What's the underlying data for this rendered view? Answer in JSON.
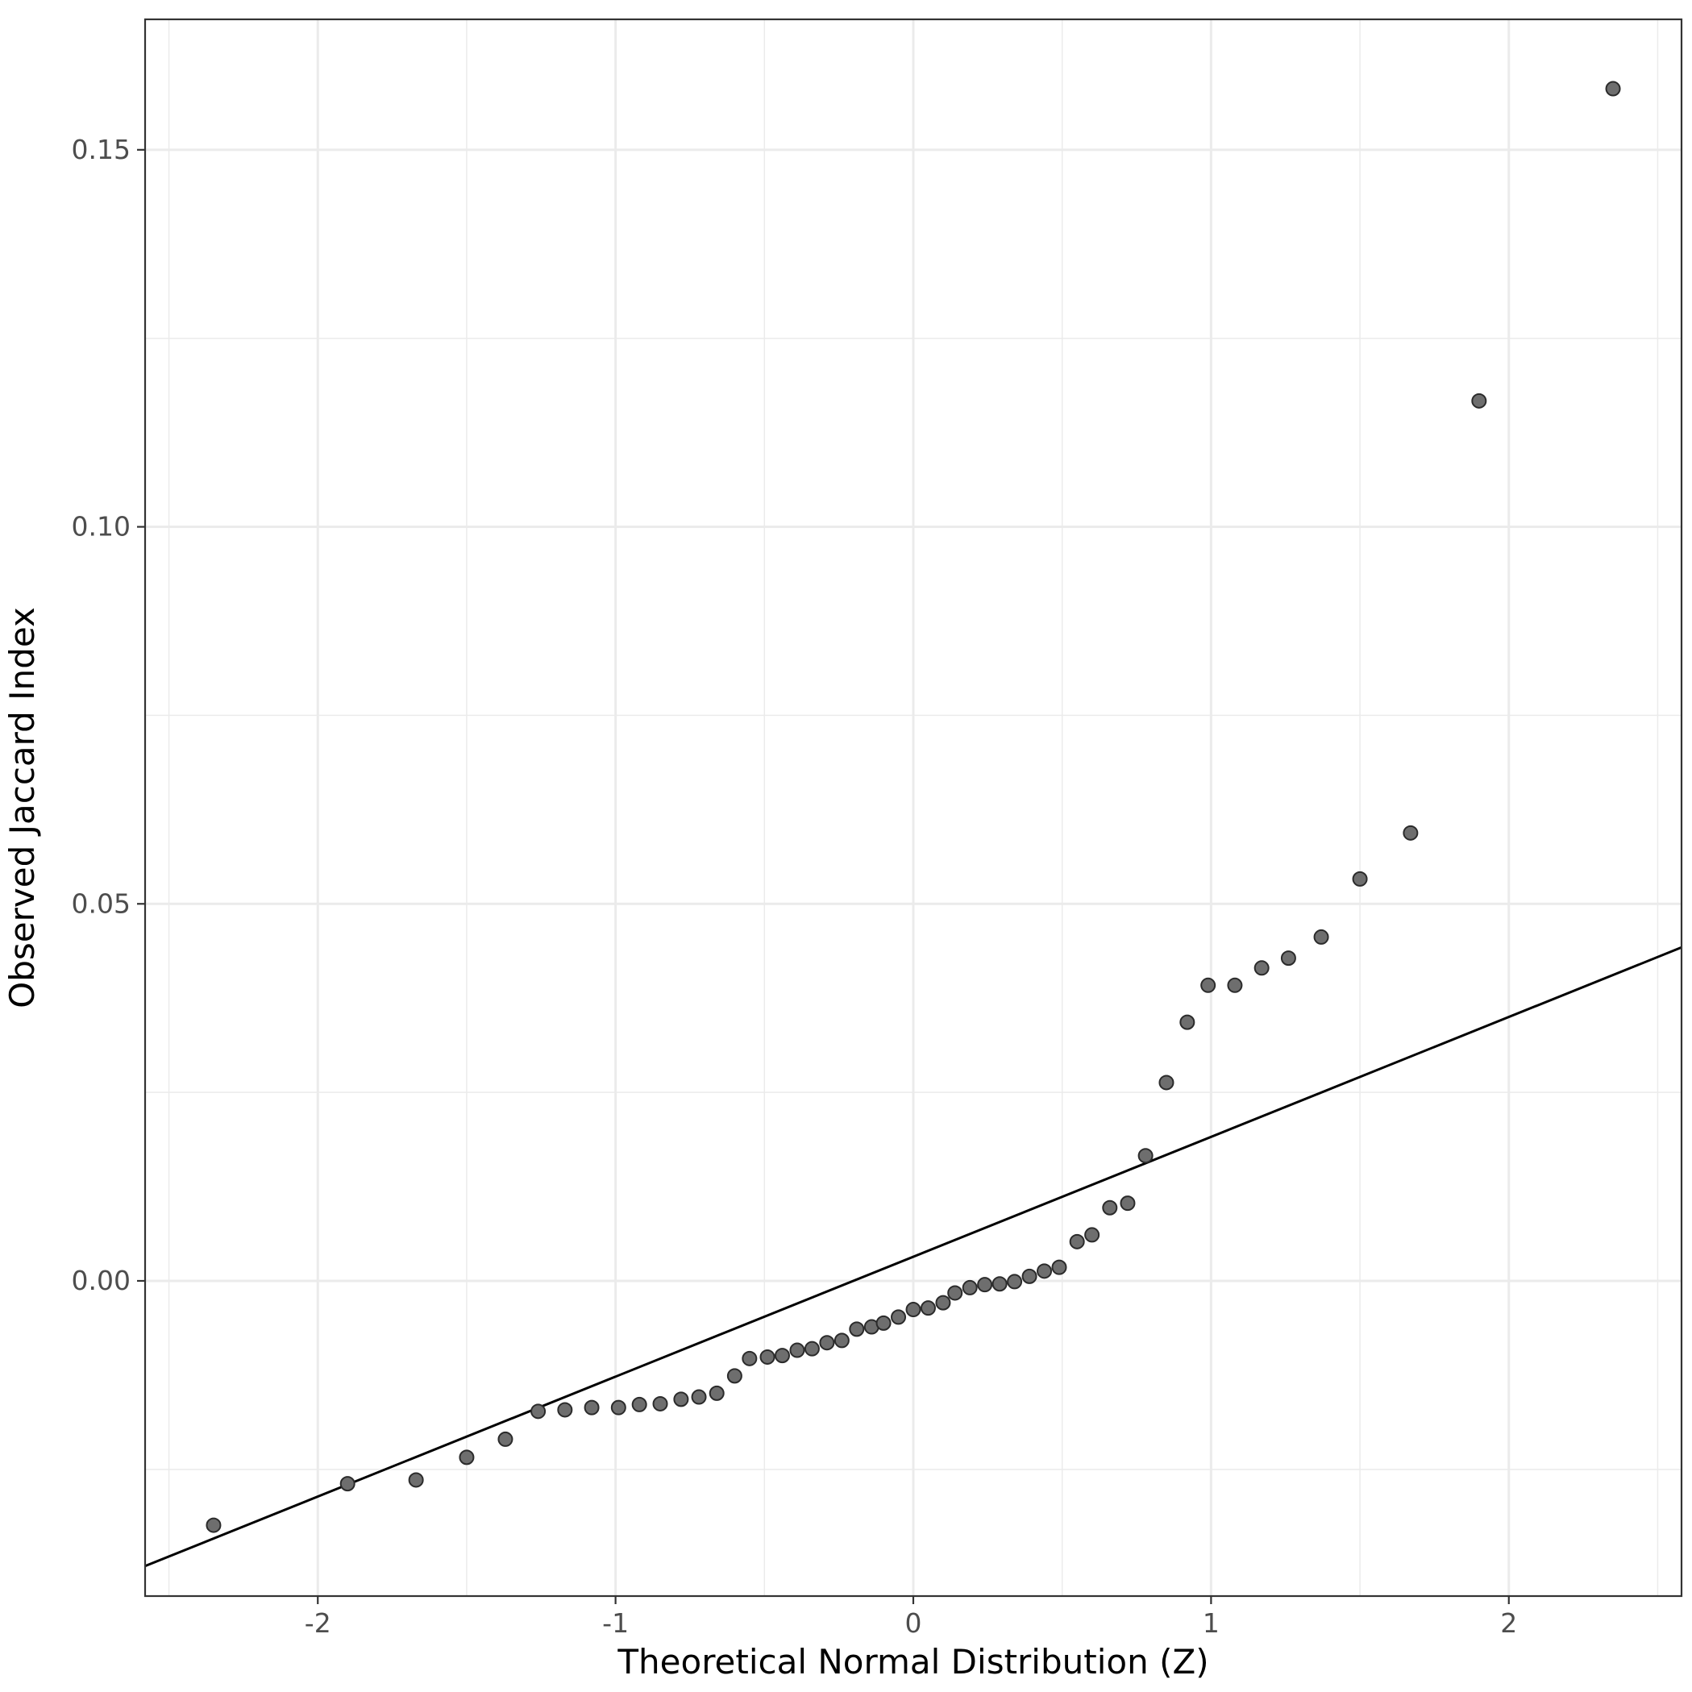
{
  "chart_data": {
    "type": "scatter",
    "title": "",
    "xlabel": "Theoretical Normal Distribution (Z)",
    "ylabel": "Observed Jaccard Index",
    "xlim": [
      -2.58,
      2.58
    ],
    "ylim": [
      -0.0418,
      0.1673
    ],
    "x_ticks": [
      {
        "value": -2,
        "label": "-2"
      },
      {
        "value": -1,
        "label": "-1"
      },
      {
        "value": 0,
        "label": "0"
      },
      {
        "value": 1,
        "label": "1"
      },
      {
        "value": 2,
        "label": "2"
      }
    ],
    "y_ticks": [
      {
        "value": 0.0,
        "label": "0.00"
      },
      {
        "value": 0.05,
        "label": "0.05"
      },
      {
        "value": 0.1,
        "label": "0.10"
      },
      {
        "value": 0.15,
        "label": "0.15"
      }
    ],
    "grid": true,
    "reference_line": {
      "intercept": 0.0032,
      "slope": 0.0159
    },
    "series": [
      {
        "points": [
          {
            "x": -2.35,
            "y": -0.0324
          },
          {
            "x": -1.9,
            "y": -0.0269
          },
          {
            "x": -1.67,
            "y": -0.0264
          },
          {
            "x": -1.5,
            "y": -0.0234
          },
          {
            "x": -1.37,
            "y": -0.021
          },
          {
            "x": -1.26,
            "y": -0.0173
          },
          {
            "x": -1.17,
            "y": -0.0171
          },
          {
            "x": -1.08,
            "y": -0.0168
          },
          {
            "x": -0.99,
            "y": -0.0168
          },
          {
            "x": -0.92,
            "y": -0.0164
          },
          {
            "x": -0.85,
            "y": -0.0163
          },
          {
            "x": -0.78,
            "y": -0.0157
          },
          {
            "x": -0.72,
            "y": -0.0154
          },
          {
            "x": -0.66,
            "y": -0.0149
          },
          {
            "x": -0.6,
            "y": -0.0126
          },
          {
            "x": -0.55,
            "y": -0.0103
          },
          {
            "x": -0.49,
            "y": -0.0101
          },
          {
            "x": -0.44,
            "y": -0.0099
          },
          {
            "x": -0.39,
            "y": -0.0092
          },
          {
            "x": -0.34,
            "y": -0.009
          },
          {
            "x": -0.29,
            "y": -0.0082
          },
          {
            "x": -0.24,
            "y": -0.0079
          },
          {
            "x": -0.19,
            "y": -0.0064
          },
          {
            "x": -0.14,
            "y": -0.0061
          },
          {
            "x": -0.1,
            "y": -0.0056
          },
          {
            "x": -0.05,
            "y": -0.0048
          },
          {
            "x": 0.0,
            "y": -0.0038
          },
          {
            "x": 0.05,
            "y": -0.0036
          },
          {
            "x": 0.1,
            "y": -0.0029
          },
          {
            "x": 0.14,
            "y": -0.0016
          },
          {
            "x": 0.19,
            "y": -0.0009
          },
          {
            "x": 0.24,
            "y": -0.0005
          },
          {
            "x": 0.29,
            "y": -0.0004
          },
          {
            "x": 0.34,
            "y": -0.0001
          },
          {
            "x": 0.39,
            "y": 0.0006
          },
          {
            "x": 0.44,
            "y": 0.0013
          },
          {
            "x": 0.49,
            "y": 0.0018
          },
          {
            "x": 0.55,
            "y": 0.0052
          },
          {
            "x": 0.6,
            "y": 0.0061
          },
          {
            "x": 0.66,
            "y": 0.0097
          },
          {
            "x": 0.72,
            "y": 0.0103
          },
          {
            "x": 0.78,
            "y": 0.0166
          },
          {
            "x": 0.85,
            "y": 0.0263
          },
          {
            "x": 0.92,
            "y": 0.0343
          },
          {
            "x": 0.99,
            "y": 0.0392
          },
          {
            "x": 1.08,
            "y": 0.0392
          },
          {
            "x": 1.17,
            "y": 0.0415
          },
          {
            "x": 1.26,
            "y": 0.0428
          },
          {
            "x": 1.37,
            "y": 0.0456
          },
          {
            "x": 1.5,
            "y": 0.0533
          },
          {
            "x": 1.67,
            "y": 0.0594
          },
          {
            "x": 1.9,
            "y": 0.1167
          },
          {
            "x": 2.35,
            "y": 0.1581
          }
        ]
      }
    ]
  }
}
